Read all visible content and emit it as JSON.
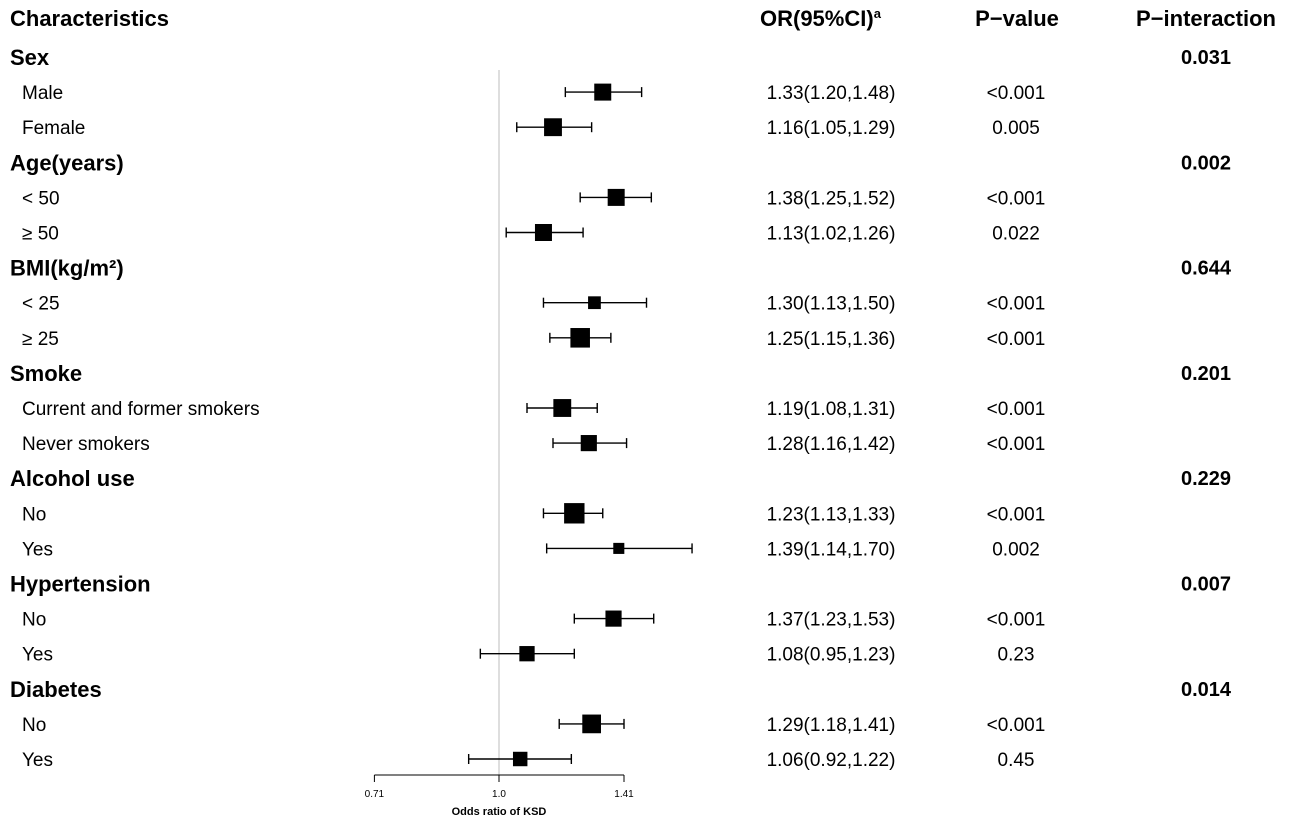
{
  "header": {
    "characteristics": "Characteristics",
    "or": "OR(95%CI)",
    "or_sup": "a",
    "pvalue": "P−value",
    "pinteraction": "P−interaction"
  },
  "groups": [
    {
      "label": "Sex",
      "p_interaction": "0.031",
      "subgroups": [
        {
          "label": "Male",
          "or_text": "1.33(1.20,1.48)",
          "p": "<0.001"
        },
        {
          "label": "Female",
          "or_text": "1.16(1.05,1.29)",
          "p": "0.005"
        }
      ]
    },
    {
      "label": "Age(years)",
      "p_interaction": "0.002",
      "subgroups": [
        {
          "label": "< 50",
          "or_text": "1.38(1.25,1.52)",
          "p": "<0.001"
        },
        {
          "label": "≥ 50",
          "or_text": "1.13(1.02,1.26)",
          "p": "0.022"
        }
      ]
    },
    {
      "label": "BMI(kg/m²)",
      "p_interaction": "0.644",
      "subgroups": [
        {
          "label": "< 25",
          "or_text": "1.30(1.13,1.50)",
          "p": "<0.001"
        },
        {
          "label": "≥ 25",
          "or_text": "1.25(1.15,1.36)",
          "p": "<0.001"
        }
      ]
    },
    {
      "label": "Smoke",
      "p_interaction": "0.201",
      "subgroups": [
        {
          "label": "Current and former smokers",
          "or_text": "1.19(1.08,1.31)",
          "p": "<0.001"
        },
        {
          "label": "Never smokers",
          "or_text": "1.28(1.16,1.42)",
          "p": "<0.001"
        }
      ]
    },
    {
      "label": "Alcohol use",
      "p_interaction": "0.229",
      "subgroups": [
        {
          "label": "No",
          "or_text": "1.23(1.13,1.33)",
          "p": "<0.001"
        },
        {
          "label": "Yes",
          "or_text": "1.39(1.14,1.70)",
          "p": "0.002"
        }
      ]
    },
    {
      "label": "Hypertension",
      "p_interaction": "0.007",
      "subgroups": [
        {
          "label": "No",
          "or_text": "1.37(1.23,1.53)",
          "p": "<0.001"
        },
        {
          "label": "Yes",
          "or_text": "1.08(0.95,1.23)",
          "p": "0.23"
        }
      ]
    },
    {
      "label": "Diabetes",
      "p_interaction": "0.014",
      "subgroups": [
        {
          "label": "No",
          "or_text": "1.29(1.18,1.41)",
          "p": "<0.001"
        },
        {
          "label": "Yes",
          "or_text": "1.06(0.92,1.22)",
          "p": "0.45"
        }
      ]
    }
  ],
  "chart_data": {
    "type": "forest",
    "xlabel": "Odds ratio of KSD",
    "x_scale": "log",
    "x_ticks": [
      "0.71",
      "1.0",
      "1.41"
    ],
    "reference_line": 1.0,
    "reference_line_color": "#c8c8c8",
    "marker_color": "#000000",
    "series": [
      {
        "group": "Sex",
        "subgroup": "Male",
        "or": 1.33,
        "lo": 1.2,
        "hi": 1.48,
        "weight": 1.0
      },
      {
        "group": "Sex",
        "subgroup": "Female",
        "or": 1.16,
        "lo": 1.05,
        "hi": 1.29,
        "weight": 1.05
      },
      {
        "group": "Age(years)",
        "subgroup": "< 50",
        "or": 1.38,
        "lo": 1.25,
        "hi": 1.52,
        "weight": 1.0
      },
      {
        "group": "Age(years)",
        "subgroup": "≥ 50",
        "or": 1.13,
        "lo": 1.02,
        "hi": 1.26,
        "weight": 1.0
      },
      {
        "group": "BMI(kg/m²)",
        "subgroup": "< 25",
        "or": 1.3,
        "lo": 1.13,
        "hi": 1.5,
        "weight": 0.75
      },
      {
        "group": "BMI(kg/m²)",
        "subgroup": "≥ 25",
        "or": 1.25,
        "lo": 1.15,
        "hi": 1.36,
        "weight": 1.15
      },
      {
        "group": "Smoke",
        "subgroup": "Current and former smokers",
        "or": 1.19,
        "lo": 1.08,
        "hi": 1.31,
        "weight": 1.05
      },
      {
        "group": "Smoke",
        "subgroup": "Never smokers",
        "or": 1.28,
        "lo": 1.16,
        "hi": 1.42,
        "weight": 0.95
      },
      {
        "group": "Alcohol use",
        "subgroup": "No",
        "or": 1.23,
        "lo": 1.13,
        "hi": 1.33,
        "weight": 1.2
      },
      {
        "group": "Alcohol use",
        "subgroup": "Yes",
        "or": 1.39,
        "lo": 1.14,
        "hi": 1.7,
        "weight": 0.65
      },
      {
        "group": "Hypertension",
        "subgroup": "No",
        "or": 1.37,
        "lo": 1.23,
        "hi": 1.53,
        "weight": 0.95
      },
      {
        "group": "Hypertension",
        "subgroup": "Yes",
        "or": 1.08,
        "lo": 0.95,
        "hi": 1.23,
        "weight": 0.9
      },
      {
        "group": "Diabetes",
        "subgroup": "No",
        "or": 1.29,
        "lo": 1.18,
        "hi": 1.41,
        "weight": 1.1
      },
      {
        "group": "Diabetes",
        "subgroup": "Yes",
        "or": 1.06,
        "lo": 0.92,
        "hi": 1.22,
        "weight": 0.85
      }
    ]
  }
}
